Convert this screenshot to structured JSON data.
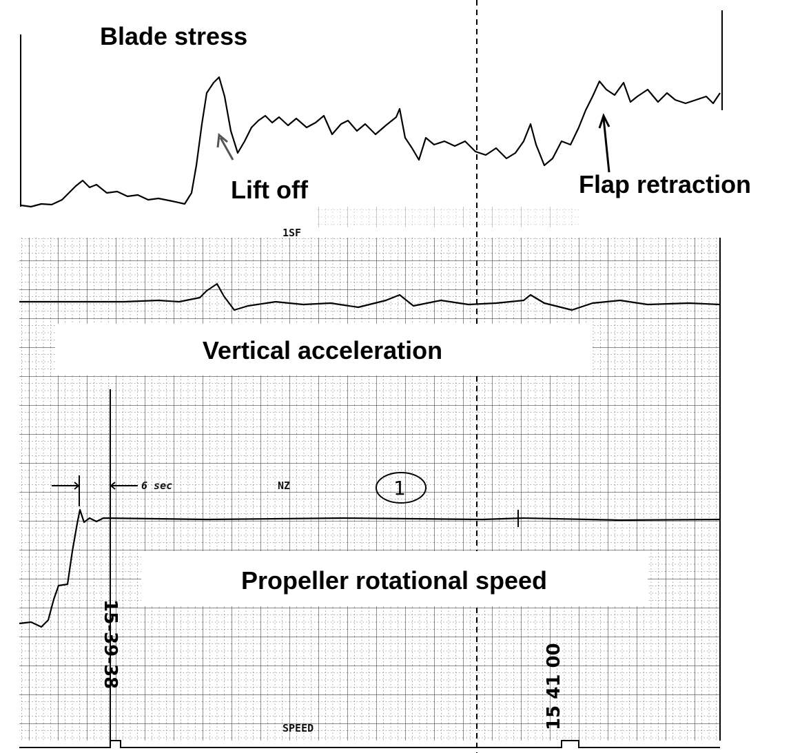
{
  "panels": {
    "blade_stress": {
      "title": "Blade stress",
      "channel": "1SF",
      "annotations": [
        "Lift off",
        "Flap retraction"
      ]
    },
    "vertical_acceleration": {
      "title": "Vertical acceleration",
      "channel": "NZ",
      "interval": "6 sec",
      "run_mark": "1"
    },
    "propeller_speed": {
      "title": "Propeller rotational speed",
      "channel": "SPEED",
      "time_marks": [
        "15-39-38",
        "15 41 00"
      ]
    }
  }
}
